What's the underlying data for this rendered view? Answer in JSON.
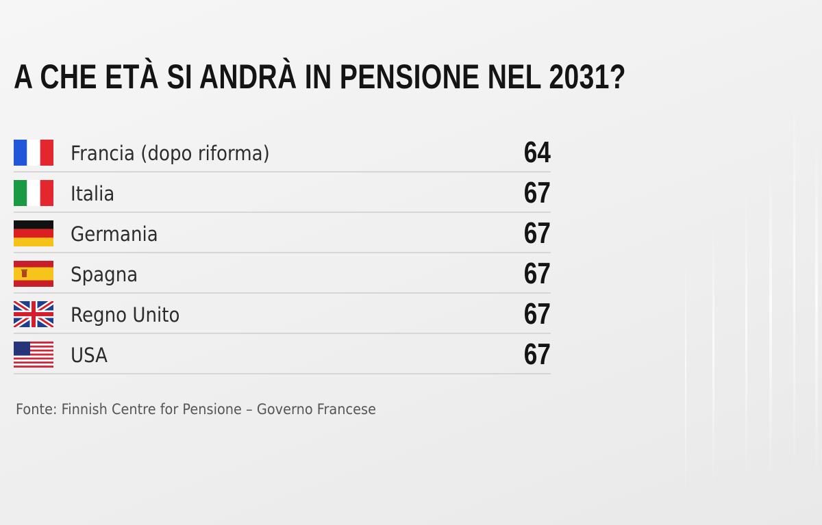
{
  "chart_data": {
    "type": "table",
    "title": "A CHE ETÀ SI ANDRÀ IN PENSIONE NEL 2031?",
    "rows": [
      {
        "flag": "france-flag-icon",
        "label": "Francia (dopo riforma)",
        "value": 64
      },
      {
        "flag": "italy-flag-icon",
        "label": "Italia",
        "value": 67
      },
      {
        "flag": "germany-flag-icon",
        "label": "Germania",
        "value": 67
      },
      {
        "flag": "spain-flag-icon",
        "label": "Spagna",
        "value": 67
      },
      {
        "flag": "uk-flag-icon",
        "label": "Regno Unito",
        "value": 67
      },
      {
        "flag": "usa-flag-icon",
        "label": "USA",
        "value": 67
      }
    ],
    "source": "Fonte:  Finnish Centre for Pensione – Governo Francese"
  },
  "colors": {
    "text": "#141414",
    "divider": "#d6d6d6",
    "france_blue": "#2156d8",
    "france_red": "#e4262e",
    "italy_green": "#1a9a45",
    "italy_red": "#e4262e",
    "germany_black": "#111111",
    "germany_red": "#dd1f1f",
    "germany_gold": "#f6c21a",
    "spain_red": "#c8202b",
    "spain_yellow": "#f7c41b",
    "uk_blue": "#1d3f8e",
    "uk_red": "#d21f2e",
    "usa_red": "#d0283a",
    "usa_blue": "#26347a"
  }
}
